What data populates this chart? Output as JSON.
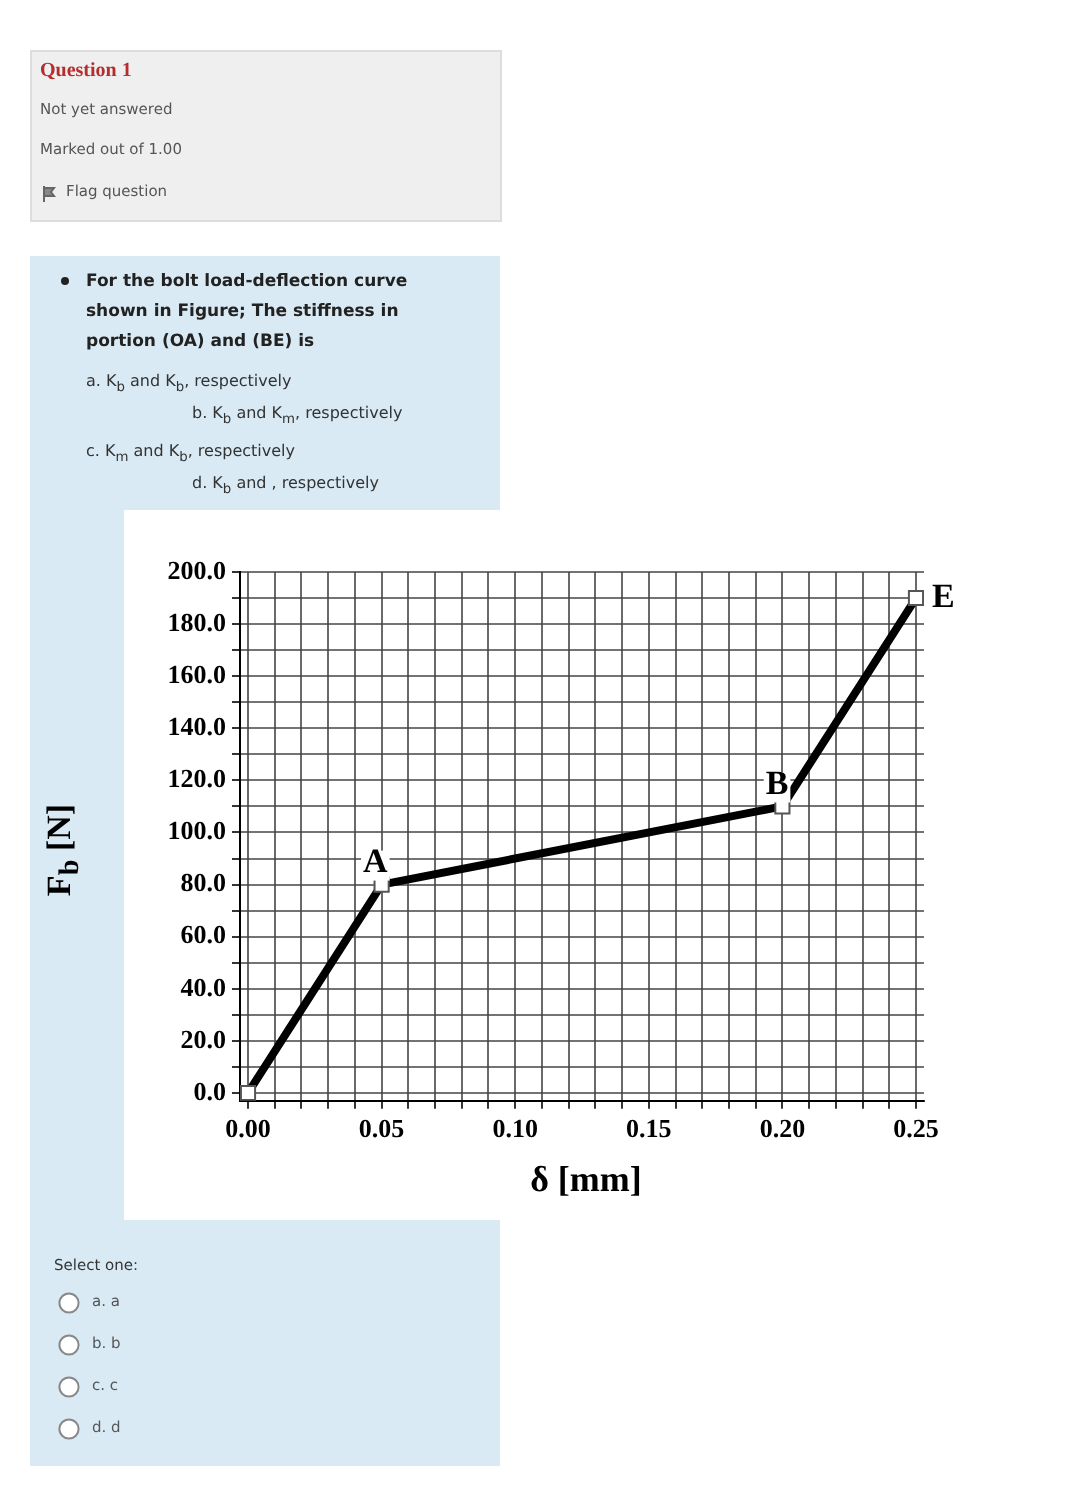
{
  "chart_data": {
    "type": "line",
    "title": "For the bolt load-deflection curve shown in Figure; The stiffness in portion (OA) and (BE) is",
    "xlabel": "δ [mm]",
    "ylabel": "F$_{b}$ [N]",
    "x": [
      0,
      0.05,
      0.2,
      0.25
    ],
    "series": [
      {
        "color": "#000000",
        "values": [
          0,
          80,
          110,
          190
        ]
      }
    ],
    "marker": "square",
    "line_style": "solid",
    "grid": true,
    "legend": false,
    "xlim": [
      -0.003,
      0.253
    ],
    "ylim": [
      -3,
      200
    ],
    "xticks": [
      {
        "value": 0,
        "label": "0.00"
      },
      {
        "value": 0.01,
        "label": null
      },
      {
        "value": 0.02,
        "label": null
      },
      {
        "value": 0.03,
        "label": null
      },
      {
        "value": 0.04,
        "label": null
      },
      {
        "value": 0.05,
        "label": "0.05"
      },
      {
        "value": 0.06,
        "label": null
      },
      {
        "value": 0.07,
        "label": null
      },
      {
        "value": 0.08,
        "label": null
      },
      {
        "value": 0.09,
        "label": null
      },
      {
        "value": 0.1,
        "label": "0.10"
      },
      {
        "value": 0.11,
        "label": null
      },
      {
        "value": 0.12,
        "label": null
      },
      {
        "value": 0.13,
        "label": null
      },
      {
        "value": 0.14,
        "label": null
      },
      {
        "value": 0.15,
        "label": "0.15"
      },
      {
        "value": 0.16,
        "label": null
      },
      {
        "value": 0.17,
        "label": null
      },
      {
        "value": 0.18,
        "label": null
      },
      {
        "value": 0.19,
        "label": null
      },
      {
        "value": 0.2,
        "label": "0.20"
      },
      {
        "value": 0.21,
        "label": null
      },
      {
        "value": 0.22,
        "label": null
      },
      {
        "value": 0.23,
        "label": null
      },
      {
        "value": 0.24,
        "label": null
      },
      {
        "value": 0.25,
        "label": "0.25"
      }
    ],
    "yticks": [
      {
        "value": 0,
        "label": "0.0"
      },
      {
        "value": 10,
        "label": null
      },
      {
        "value": 20,
        "label": "20.0"
      },
      {
        "value": 30,
        "label": null
      },
      {
        "value": 40,
        "label": "40.0"
      },
      {
        "value": 50,
        "label": null
      },
      {
        "value": 60,
        "label": "60.0"
      },
      {
        "value": 70,
        "label": null
      },
      {
        "value": 80,
        "label": "80.0"
      },
      {
        "value": 90,
        "label": null
      },
      {
        "value": 100,
        "label": "100.0"
      },
      {
        "value": 110,
        "label": null
      },
      {
        "value": 120,
        "label": "120.0"
      },
      {
        "value": 130,
        "label": null
      },
      {
        "value": 140,
        "label": "140.0"
      },
      {
        "value": 150,
        "label": null
      },
      {
        "value": 160,
        "label": "160.0"
      },
      {
        "value": 170,
        "label": null
      },
      {
        "value": 180,
        "label": "180.0"
      },
      {
        "value": 190,
        "label": null
      },
      {
        "value": 200,
        "label": "200.0"
      }
    ],
    "annotations": [
      "Question 1",
      "Not yet answered",
      "Marked out of 1.00",
      "Flag question",
      "a. K$_{b}$ and K$_{b}$, respectively",
      "b. K$_{b}$ and K$_{m}$, respectively",
      "c. K$_{m}$ and K$_{b}$, respectively",
      "d. K$_{b}$ and , respectively",
      "Select one:",
      "a. a",
      "b. b",
      "c. c",
      "d. d",
      {
        "text": "A",
        "x": 0.05,
        "y": 80
      },
      {
        "text": "B",
        "x": 0.2,
        "y": 110
      },
      {
        "text": "E",
        "x": 0.25,
        "y": 190
      }
    ]
  }
}
